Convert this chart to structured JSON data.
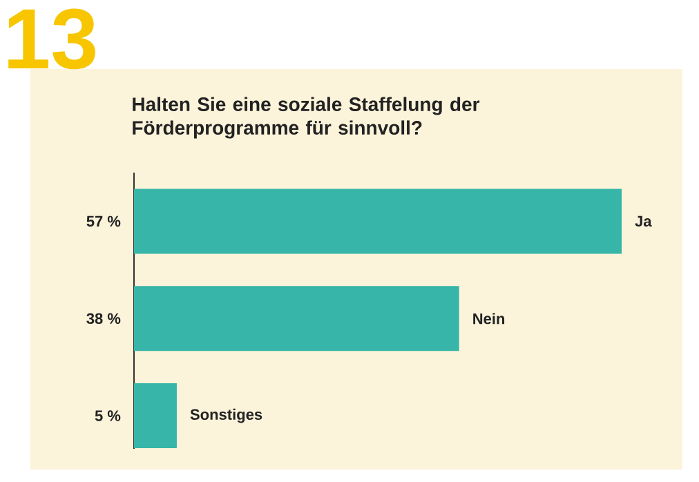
{
  "chart_data": {
    "type": "bar",
    "orientation": "horizontal",
    "title": "Halten Sie eine soziale Staffelung der Förderprogramme für sinnvoll?",
    "annotations": [
      "13"
    ],
    "categories": [
      "Ja",
      "Nein",
      "Sonstiges"
    ],
    "values": [
      57,
      38,
      5
    ],
    "value_labels": [
      "57 %",
      "38 %",
      "5 %"
    ],
    "color": "#36b5a8"
  }
}
